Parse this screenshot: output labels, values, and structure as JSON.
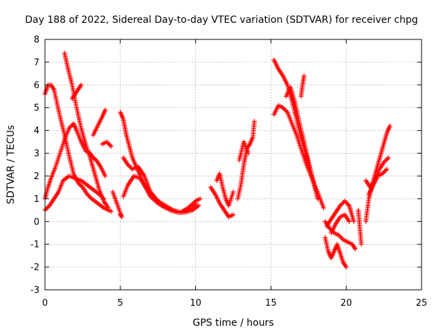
{
  "chart_data": {
    "type": "scatter",
    "title": "Day 188 of 2022, Sidereal Day-to-day VTEC variation (SDTVAR) for receiver chpg",
    "xlabel": "GPS time / hours",
    "ylabel": "SDTVAR / TECUs",
    "xlim": [
      0,
      25
    ],
    "ylim": [
      -3,
      8
    ],
    "xticks": [
      "0",
      "5",
      "10",
      "15",
      "20",
      "25"
    ],
    "yticks": [
      "-3",
      "-2",
      "-1",
      "0",
      "1",
      "2",
      "3",
      "4",
      "5",
      "6",
      "7",
      "8"
    ],
    "grid": true,
    "marker": "+",
    "marker_color": "#ff0000",
    "series": [
      {
        "x": [
          0.0,
          0.2,
          0.4,
          0.6,
          0.8,
          1.0,
          1.3,
          1.6,
          1.9,
          2.2,
          2.5,
          2.8,
          3.1,
          3.5,
          3.9,
          4.2,
          4.4
        ],
        "y": [
          5.6,
          6.0,
          6.0,
          5.8,
          5.2,
          4.6,
          3.8,
          2.9,
          2.1,
          1.7,
          1.5,
          1.2,
          1.0,
          0.8,
          0.6,
          0.5,
          0.45
        ]
      },
      {
        "x": [
          0.0,
          0.2,
          0.4,
          0.7,
          1.0,
          1.3,
          1.6,
          1.9,
          2.1,
          2.4,
          2.7,
          3.0,
          3.2,
          3.4,
          3.7,
          4.0
        ],
        "y": [
          1.0,
          1.5,
          1.9,
          2.4,
          3.0,
          3.6,
          4.1,
          4.3,
          4.0,
          3.5,
          3.1,
          3.0,
          2.8,
          2.7,
          2.4,
          2.0
        ]
      },
      {
        "x": [
          1.3,
          1.5,
          1.8,
          2.1,
          2.4,
          2.7,
          3.0,
          3.3,
          3.6,
          3.9,
          4.2
        ],
        "y": [
          7.4,
          6.8,
          6.0,
          5.0,
          4.1,
          3.4,
          2.8,
          2.1,
          1.4,
          0.9,
          0.6
        ]
      },
      {
        "x": [
          0.0,
          0.3,
          0.6,
          0.9,
          1.2,
          1.6,
          2.0,
          2.4,
          2.8,
          3.2,
          3.6,
          3.9
        ],
        "y": [
          0.5,
          0.7,
          1.0,
          1.3,
          1.8,
          2.0,
          1.9,
          1.8,
          1.6,
          1.4,
          1.2,
          1.0
        ]
      },
      {
        "x": [
          1.8,
          2.0,
          2.2,
          2.4
        ],
        "y": [
          5.4,
          5.6,
          5.8,
          6.0
        ]
      },
      {
        "x": [
          3.2,
          3.5,
          3.8,
          4.0
        ],
        "y": [
          3.8,
          4.2,
          4.6,
          4.9
        ]
      },
      {
        "x": [
          3.8,
          4.1,
          4.4
        ],
        "y": [
          3.4,
          3.5,
          3.3
        ]
      },
      {
        "x": [
          5.0,
          5.2,
          5.4,
          5.8,
          6.2,
          6.6,
          7.0,
          7.5,
          8.0,
          8.5,
          9.0,
          9.5,
          10.0
        ],
        "y": [
          4.8,
          4.5,
          3.8,
          2.8,
          2.2,
          1.6,
          1.1,
          0.8,
          0.6,
          0.5,
          0.4,
          0.5,
          0.8
        ]
      },
      {
        "x": [
          5.2,
          5.5,
          5.8,
          6.2,
          6.6,
          7.0,
          7.5,
          8.0,
          8.5,
          9.0,
          9.5,
          10.0,
          10.3
        ],
        "y": [
          2.8,
          2.5,
          2.3,
          2.4,
          2.0,
          1.3,
          0.9,
          0.7,
          0.5,
          0.4,
          0.6,
          0.9,
          1.0
        ]
      },
      {
        "x": [
          5.2,
          5.5,
          5.9,
          6.3,
          6.8,
          7.3,
          7.8,
          8.3,
          8.8,
          9.3,
          9.8,
          10.2
        ],
        "y": [
          1.1,
          1.6,
          2.0,
          1.9,
          1.4,
          1.0,
          0.7,
          0.5,
          0.4,
          0.4,
          0.5,
          0.7
        ]
      },
      {
        "x": [
          5.0,
          5.1,
          4.5
        ],
        "y": [
          0.3,
          0.2,
          1.3
        ]
      },
      {
        "x": [
          11.0,
          11.3,
          11.6,
          11.9,
          12.2,
          12.5
        ],
        "y": [
          1.5,
          1.2,
          0.8,
          0.5,
          0.2,
          0.3
        ]
      },
      {
        "x": [
          11.4,
          11.6,
          11.8,
          12.0,
          12.2,
          12.5
        ],
        "y": [
          1.8,
          2.1,
          1.5,
          1.0,
          0.7,
          1.3
        ]
      },
      {
        "x": [
          12.8,
          13.0,
          13.2,
          13.4,
          13.6,
          13.8,
          13.9
        ],
        "y": [
          1.0,
          1.6,
          2.5,
          3.2,
          3.4,
          3.7,
          4.4
        ]
      },
      {
        "x": [
          12.9,
          13.2,
          13.5
        ],
        "y": [
          2.7,
          3.5,
          3.0
        ]
      },
      {
        "x": [
          15.2,
          15.5,
          15.8,
          16.1,
          16.4,
          16.7,
          17.0,
          17.3,
          17.6,
          17.9,
          18.2,
          18.5
        ],
        "y": [
          7.1,
          6.7,
          6.4,
          6.0,
          5.3,
          4.5,
          3.7,
          3.0,
          2.3,
          1.6,
          1.1,
          0.6
        ]
      },
      {
        "x": [
          15.2,
          15.5,
          15.8,
          16.1,
          16.4,
          16.7,
          17.0,
          17.3,
          17.6,
          17.9,
          18.2
        ],
        "y": [
          4.7,
          5.1,
          5.0,
          4.8,
          4.3,
          3.8,
          3.2,
          2.6,
          2.1,
          1.6,
          1.1
        ]
      },
      {
        "x": [
          16.0,
          16.3,
          16.6,
          16.9,
          17.2,
          17.5,
          17.8,
          18.1
        ],
        "y": [
          5.5,
          5.9,
          5.2,
          4.3,
          3.5,
          2.6,
          1.8,
          1.0
        ]
      },
      {
        "x": [
          17.0,
          17.1,
          17.2
        ],
        "y": [
          5.5,
          6.0,
          6.4
        ]
      },
      {
        "x": [
          18.6,
          18.8,
          19.0,
          19.2,
          19.4,
          19.6,
          19.8,
          20.0
        ],
        "y": [
          -0.7,
          -1.3,
          -1.6,
          -1.3,
          -1.0,
          -1.4,
          -1.8,
          -2.0
        ]
      },
      {
        "x": [
          18.6,
          18.9,
          19.2,
          19.5,
          19.8,
          20.1,
          20.4,
          20.6
        ],
        "y": [
          0.0,
          -0.3,
          -0.5,
          -0.6,
          -0.8,
          -0.9,
          -1.0,
          -1.2
        ]
      },
      {
        "x": [
          18.7,
          19.0,
          19.3,
          19.6,
          19.9,
          20.2,
          20.5
        ],
        "y": [
          -0.2,
          0.1,
          0.4,
          0.7,
          0.9,
          0.7,
          0.0
        ]
      },
      {
        "x": [
          19.0,
          19.3,
          19.6,
          19.9,
          20.2
        ],
        "y": [
          -0.5,
          -0.1,
          0.2,
          0.3,
          0.0
        ]
      },
      {
        "x": [
          20.8,
          21.0
        ],
        "y": [
          0.5,
          -1.0
        ]
      },
      {
        "x": [
          21.3,
          21.5,
          21.8,
          22.1,
          22.4,
          22.7,
          22.9
        ],
        "y": [
          0.0,
          1.0,
          1.8,
          2.5,
          3.2,
          3.9,
          4.2
        ]
      },
      {
        "x": [
          21.3,
          21.6,
          21.9,
          22.2,
          22.5,
          22.8
        ],
        "y": [
          1.8,
          1.5,
          1.8,
          2.3,
          2.6,
          2.8
        ]
      },
      {
        "x": [
          21.5,
          21.8,
          22.1,
          22.4,
          22.7
        ],
        "y": [
          1.2,
          1.6,
          2.0,
          2.1,
          2.3
        ]
      }
    ]
  }
}
